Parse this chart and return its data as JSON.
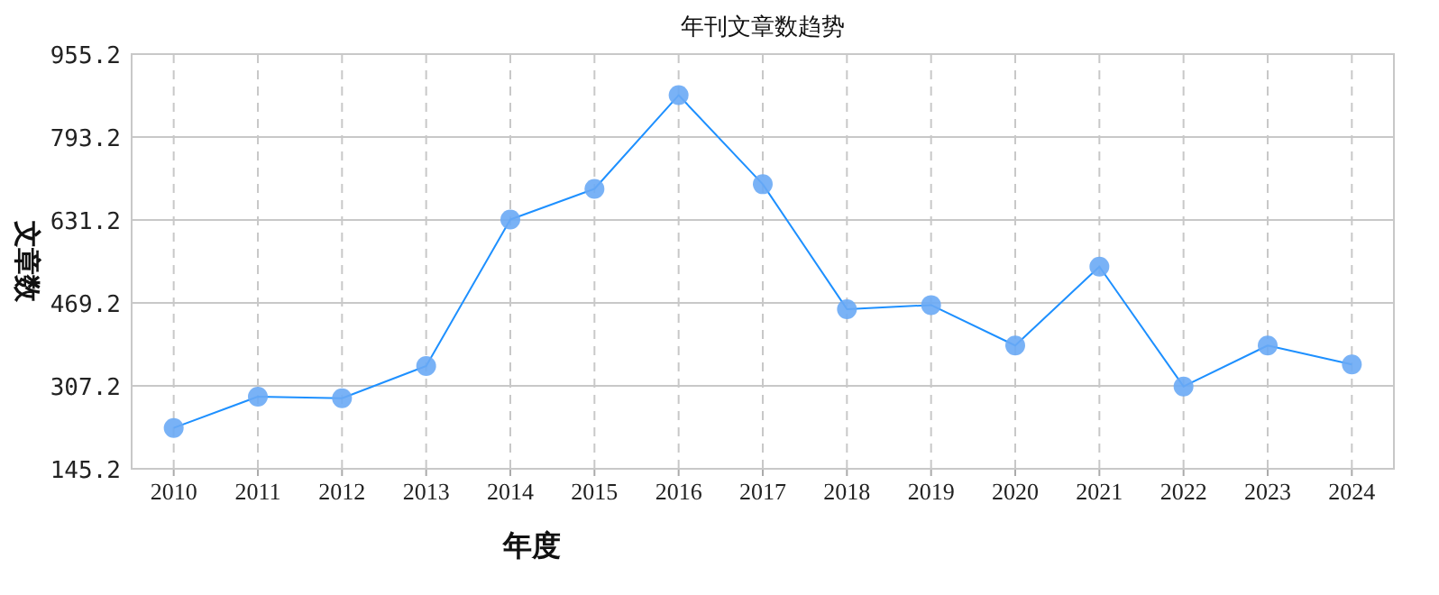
{
  "chart_data": {
    "type": "line",
    "title": "年刊文章数趋势",
    "xlabel": "年度",
    "ylabel": "文章数",
    "categories": [
      "2010",
      "2011",
      "2012",
      "2013",
      "2014",
      "2015",
      "2016",
      "2017",
      "2018",
      "2019",
      "2020",
      "2021",
      "2022",
      "2023",
      "2024"
    ],
    "series": [
      {
        "color": "#1e90ff",
        "values": [
          225,
          286,
          283,
          346,
          632,
          692,
          875,
          701,
          457,
          465,
          386,
          540,
          306,
          386,
          349
        ]
      }
    ],
    "ylim": [
      145.2,
      955.2
    ],
    "yticks": [
      145.2,
      307.2,
      469.2,
      631.2,
      793.2,
      955.2
    ],
    "grid": true,
    "marker": "circle",
    "line_style": "solid"
  }
}
